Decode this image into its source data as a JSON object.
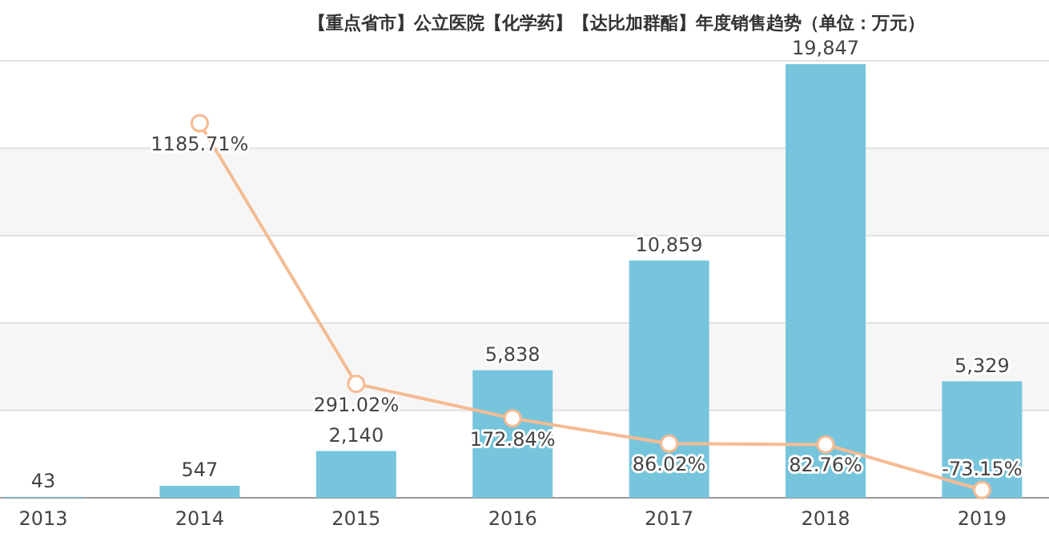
{
  "chart_data": {
    "type": "bar",
    "title": "【重点省市】公立医院【化学药】【达比加群酯】年度销售趋势（单位：万元）",
    "categories": [
      "2013",
      "2014",
      "2015",
      "2016",
      "2017",
      "2018",
      "2019"
    ],
    "series": [
      {
        "color": "#76c5dc",
        "values": [
          43,
          547,
          2140,
          5838,
          10859,
          19847,
          5329
        ],
        "value_labels": [
          "43",
          "547",
          "2,140",
          "5,838",
          "10,859",
          "19,847",
          "5,329"
        ]
      },
      {
        "type": "line",
        "axis": "y2",
        "color": "#f5bb93",
        "marker": "circle",
        "values": [
          null,
          1185.71,
          291.02,
          172.84,
          86.02,
          82.76,
          -73.15
        ],
        "value_labels": [
          null,
          "1185.71%",
          "291.02%",
          "172.84%",
          "86.02%",
          "82.76%",
          "-73.15%"
        ]
      }
    ],
    "ylim": [
      0,
      20000
    ],
    "yticks": [
      {
        "value": 0,
        "label": null
      },
      {
        "value": 4000,
        "label": null
      },
      {
        "value": 8000,
        "label": null
      },
      {
        "value": 12000,
        "label": null
      },
      {
        "value": 16000,
        "label": null
      },
      {
        "value": 20000,
        "label": null
      }
    ],
    "y2lim": [
      -100,
      1400
    ],
    "grid": "y",
    "tick_labels": "x"
  }
}
